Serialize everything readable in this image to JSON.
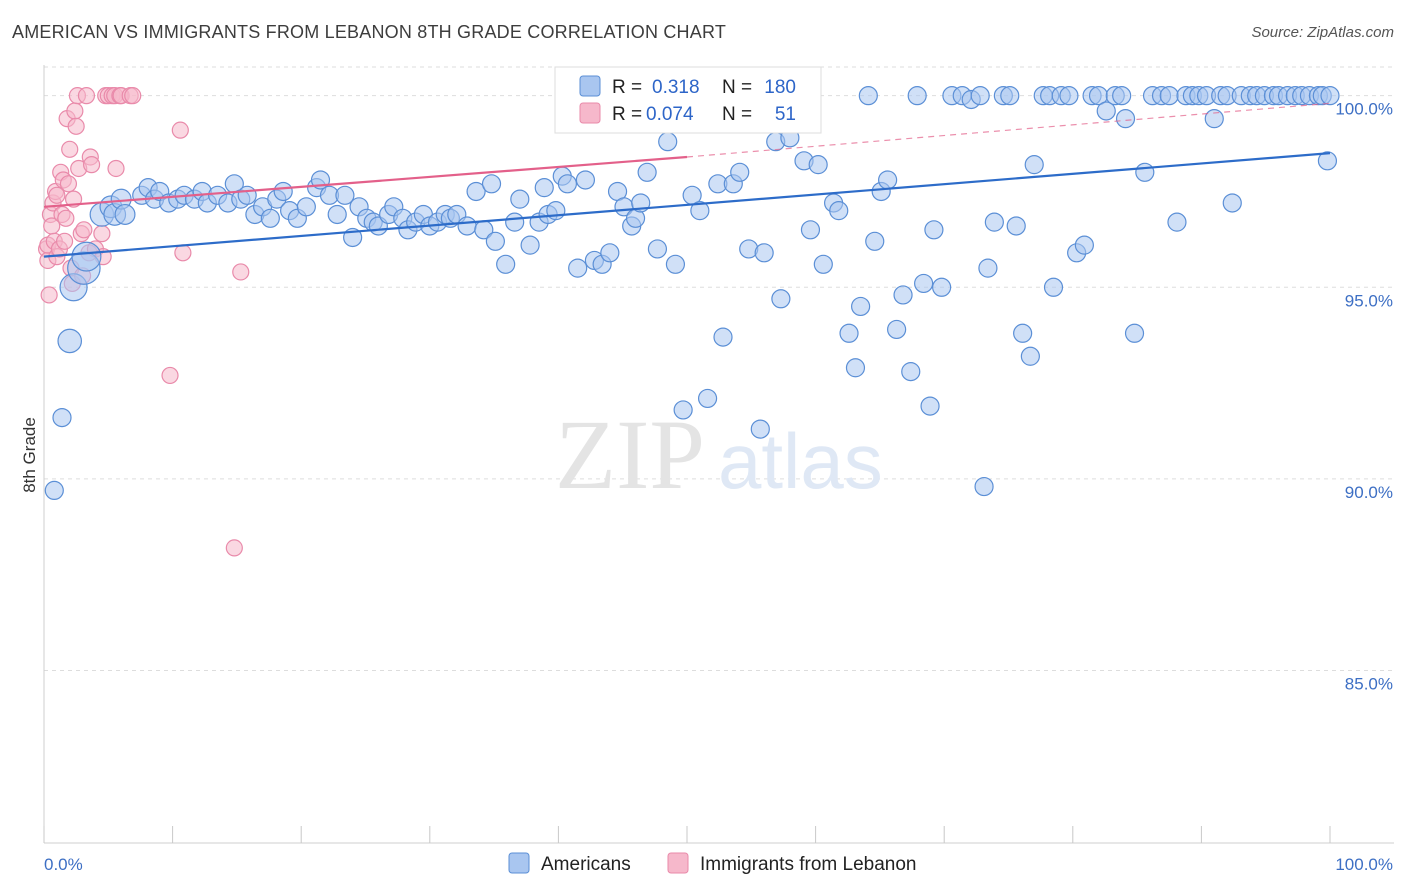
{
  "header": {
    "title": "AMERICAN VS IMMIGRANTS FROM LEBANON 8TH GRADE CORRELATION CHART",
    "source": "Source: ZipAtlas.com"
  },
  "watermark": {
    "zip": "ZIP",
    "atlas": "atlas"
  },
  "colors": {
    "blue_fill": "#a9c6f0",
    "blue_stroke": "#5b8fd6",
    "blue_line": "#2d6cc9",
    "pink_fill": "#f6b8cb",
    "pink_stroke": "#e98aaa",
    "pink_line": "#e3608a",
    "grid": "#dddddd",
    "axis_text": "#3d6fc4"
  },
  "legend_box": {
    "rows": [
      {
        "r_label": "R =",
        "r_value": "0.318",
        "n_label": "N =",
        "n_value": "180",
        "color": "blue"
      },
      {
        "r_label": "R =",
        "r_value": "0.074",
        "n_label": "N =",
        "n_value": "51",
        "color": "pink"
      }
    ]
  },
  "chart_data": {
    "type": "scatter",
    "title": "AMERICAN VS IMMIGRANTS FROM LEBANON 8TH GRADE CORRELATION CHART",
    "xlabel": "",
    "ylabel": "8th Grade",
    "xlim": [
      0,
      100
    ],
    "ylim": [
      80.5,
      100.8
    ],
    "x_tick_labels": [
      "0.0%",
      "100.0%"
    ],
    "y_ticks": [
      85,
      90,
      95,
      100
    ],
    "y_tick_labels": [
      "85.0%",
      "90.0%",
      "95.0%",
      "100.0%"
    ],
    "grid": "horizontal dashed",
    "legend_placement": "top-center and bottom",
    "series": [
      {
        "name": "Americans",
        "color": "blue",
        "trend": {
          "x": [
            0,
            100
          ],
          "y": [
            95.8,
            98.5
          ],
          "style": "solid"
        },
        "points": [
          [
            0.8,
            89.7,
            1
          ],
          [
            1.4,
            91.6,
            1
          ],
          [
            2.0,
            93.6,
            1.3
          ],
          [
            2.3,
            95.0,
            1.5
          ],
          [
            3.1,
            95.5,
            1.8
          ],
          [
            3.3,
            95.8,
            1.6
          ],
          [
            4.5,
            96.9,
            1.3
          ],
          [
            5.2,
            97.1,
            1.2
          ],
          [
            5.5,
            96.9,
            1.2
          ],
          [
            6.0,
            97.3,
            1.1
          ],
          [
            6.3,
            96.9,
            1.1
          ],
          [
            7.6,
            97.4,
            1
          ],
          [
            8.1,
            97.6,
            1
          ],
          [
            8.6,
            97.3,
            1
          ],
          [
            9.0,
            97.5,
            1
          ],
          [
            9.7,
            97.2,
            1
          ],
          [
            10.4,
            97.3,
            1
          ],
          [
            10.9,
            97.4,
            1
          ],
          [
            11.7,
            97.3,
            1
          ],
          [
            12.3,
            97.5,
            1
          ],
          [
            12.7,
            97.2,
            1
          ],
          [
            13.5,
            97.4,
            1
          ],
          [
            14.3,
            97.2,
            1
          ],
          [
            14.8,
            97.7,
            1
          ],
          [
            15.3,
            97.3,
            1
          ],
          [
            15.8,
            97.4,
            1
          ],
          [
            16.4,
            96.9,
            1
          ],
          [
            17.0,
            97.1,
            1
          ],
          [
            17.6,
            96.8,
            1
          ],
          [
            18.1,
            97.3,
            1
          ],
          [
            18.6,
            97.5,
            1
          ],
          [
            19.1,
            97.0,
            1
          ],
          [
            19.7,
            96.8,
            1
          ],
          [
            20.4,
            97.1,
            1
          ],
          [
            21.2,
            97.6,
            1
          ],
          [
            21.5,
            97.8,
            1
          ],
          [
            22.2,
            97.4,
            1
          ],
          [
            22.8,
            96.9,
            1
          ],
          [
            23.4,
            97.4,
            1
          ],
          [
            24.0,
            96.3,
            1
          ],
          [
            24.5,
            97.1,
            1
          ],
          [
            25.1,
            96.8,
            1
          ],
          [
            25.6,
            96.7,
            1
          ],
          [
            26.0,
            96.6,
            1
          ],
          [
            26.8,
            96.9,
            1
          ],
          [
            27.2,
            97.1,
            1
          ],
          [
            27.9,
            96.8,
            1
          ],
          [
            28.3,
            96.5,
            1
          ],
          [
            28.9,
            96.7,
            1
          ],
          [
            29.5,
            96.9,
            1
          ],
          [
            30.0,
            96.6,
            1
          ],
          [
            30.6,
            96.7,
            1
          ],
          [
            31.2,
            96.9,
            1
          ],
          [
            31.6,
            96.8,
            1
          ],
          [
            32.1,
            96.9,
            1
          ],
          [
            32.9,
            96.6,
            1
          ],
          [
            33.6,
            97.5,
            1
          ],
          [
            34.2,
            96.5,
            1
          ],
          [
            34.8,
            97.7,
            1
          ],
          [
            35.1,
            96.2,
            1
          ],
          [
            35.9,
            95.6,
            1
          ],
          [
            36.6,
            96.7,
            1
          ],
          [
            37.0,
            97.3,
            1
          ],
          [
            37.8,
            96.1,
            1
          ],
          [
            38.5,
            96.7,
            1
          ],
          [
            38.9,
            97.6,
            1
          ],
          [
            39.2,
            96.9,
            1
          ],
          [
            39.8,
            97.0,
            1
          ],
          [
            40.3,
            97.9,
            1
          ],
          [
            40.7,
            97.7,
            1
          ],
          [
            41.5,
            95.5,
            1
          ],
          [
            42.1,
            97.8,
            1
          ],
          [
            42.8,
            95.7,
            1
          ],
          [
            43.4,
            95.6,
            1
          ],
          [
            44.0,
            95.9,
            1
          ],
          [
            44.6,
            97.5,
            1
          ],
          [
            45.1,
            97.1,
            1
          ],
          [
            45.7,
            96.6,
            1
          ],
          [
            46.0,
            96.8,
            1
          ],
          [
            46.4,
            97.2,
            1
          ],
          [
            46.9,
            98.0,
            1
          ],
          [
            47.7,
            96.0,
            1
          ],
          [
            48.5,
            98.8,
            1
          ],
          [
            49.1,
            95.6,
            1
          ],
          [
            49.7,
            91.8,
            1
          ],
          [
            50.4,
            97.4,
            1
          ],
          [
            51.0,
            97.0,
            1
          ],
          [
            51.6,
            92.1,
            1
          ],
          [
            52.4,
            97.7,
            1
          ],
          [
            52.8,
            93.7,
            1
          ],
          [
            53.6,
            97.7,
            1
          ],
          [
            54.1,
            98.0,
            1
          ],
          [
            54.8,
            96.0,
            1
          ],
          [
            55.7,
            91.3,
            1
          ],
          [
            56.0,
            95.9,
            1
          ],
          [
            56.9,
            98.8,
            1
          ],
          [
            57.3,
            94.7,
            1
          ],
          [
            58.0,
            98.9,
            1
          ],
          [
            58.5,
            99.6,
            1
          ],
          [
            59.1,
            98.3,
            1
          ],
          [
            59.6,
            96.5,
            1
          ],
          [
            60.2,
            98.2,
            1
          ],
          [
            60.6,
            95.6,
            1
          ],
          [
            61.4,
            97.2,
            1
          ],
          [
            61.8,
            97.0,
            1
          ],
          [
            62.6,
            93.8,
            1
          ],
          [
            63.1,
            92.9,
            1
          ],
          [
            63.5,
            94.5,
            1
          ],
          [
            64.1,
            100.0,
            1
          ],
          [
            64.6,
            96.2,
            1
          ],
          [
            65.1,
            97.5,
            1
          ],
          [
            65.6,
            97.8,
            1
          ],
          [
            66.3,
            93.9,
            1
          ],
          [
            66.8,
            94.8,
            1
          ],
          [
            67.4,
            92.8,
            1
          ],
          [
            67.9,
            100.0,
            1
          ],
          [
            68.4,
            95.1,
            1
          ],
          [
            68.9,
            91.9,
            1
          ],
          [
            69.2,
            96.5,
            1
          ],
          [
            69.8,
            95.0,
            1
          ],
          [
            70.6,
            100.0,
            1
          ],
          [
            71.4,
            100.0,
            1
          ],
          [
            72.1,
            99.9,
            1
          ],
          [
            72.8,
            100.0,
            1
          ],
          [
            73.1,
            89.8,
            1
          ],
          [
            73.4,
            95.5,
            1
          ],
          [
            73.9,
            96.7,
            1
          ],
          [
            74.6,
            100.0,
            1
          ],
          [
            75.1,
            100.0,
            1
          ],
          [
            75.6,
            96.6,
            1
          ],
          [
            76.1,
            93.8,
            1
          ],
          [
            76.7,
            93.2,
            1
          ],
          [
            77.0,
            98.2,
            1
          ],
          [
            77.7,
            100.0,
            1
          ],
          [
            78.2,
            100.0,
            1
          ],
          [
            78.5,
            95.0,
            1
          ],
          [
            79.1,
            100.0,
            1
          ],
          [
            79.7,
            100.0,
            1
          ],
          [
            80.3,
            95.9,
            1
          ],
          [
            80.9,
            96.1,
            1
          ],
          [
            81.5,
            100.0,
            1
          ],
          [
            82.0,
            100.0,
            1
          ],
          [
            82.6,
            99.6,
            1
          ],
          [
            83.3,
            100.0,
            1
          ],
          [
            83.8,
            100.0,
            1
          ],
          [
            84.1,
            99.4,
            1
          ],
          [
            84.8,
            93.8,
            1
          ],
          [
            85.6,
            98.0,
            1
          ],
          [
            86.2,
            100.0,
            1
          ],
          [
            86.9,
            100.0,
            1
          ],
          [
            87.5,
            100.0,
            1
          ],
          [
            88.1,
            96.7,
            1
          ],
          [
            88.8,
            100.0,
            1
          ],
          [
            89.3,
            100.0,
            1
          ],
          [
            89.8,
            100.0,
            1
          ],
          [
            90.4,
            100.0,
            1
          ],
          [
            91.0,
            99.4,
            1
          ],
          [
            91.5,
            100.0,
            1
          ],
          [
            92.0,
            100.0,
            1
          ],
          [
            92.4,
            97.2,
            1
          ],
          [
            93.1,
            100.0,
            1
          ],
          [
            93.8,
            100.0,
            1
          ],
          [
            94.3,
            100.0,
            1
          ],
          [
            94.9,
            100.0,
            1
          ],
          [
            95.6,
            100.0,
            1
          ],
          [
            96.0,
            100.0,
            1
          ],
          [
            96.7,
            100.0,
            1
          ],
          [
            97.3,
            100.0,
            1
          ],
          [
            97.8,
            100.0,
            1
          ],
          [
            98.4,
            100.0,
            1
          ],
          [
            99.1,
            100.0,
            1
          ],
          [
            99.4,
            100.0,
            1
          ],
          [
            99.8,
            98.3,
            1
          ],
          [
            100.0,
            100.0,
            1
          ]
        ]
      },
      {
        "name": "Immigrants from Lebanon",
        "color": "pink",
        "trend": {
          "x": [
            0,
            50
          ],
          "y": [
            97.1,
            98.4
          ],
          "style": "solid",
          "extension": {
            "x": [
              50,
              100
            ],
            "y": [
              98.4,
              99.8
            ],
            "style": "dashed"
          }
        },
        "points": [
          [
            0.2,
            96.0,
            1
          ],
          [
            0.3,
            95.7,
            1
          ],
          [
            0.3,
            96.1,
            1
          ],
          [
            0.4,
            94.8,
            1
          ],
          [
            0.5,
            96.9,
            1
          ],
          [
            0.6,
            96.6,
            1
          ],
          [
            0.7,
            97.2,
            1
          ],
          [
            0.8,
            96.2,
            1
          ],
          [
            0.9,
            97.5,
            1
          ],
          [
            1.0,
            97.4,
            1
          ],
          [
            1.0,
            95.8,
            1
          ],
          [
            1.2,
            96.0,
            1
          ],
          [
            1.3,
            98.0,
            1
          ],
          [
            1.4,
            96.9,
            1
          ],
          [
            1.5,
            97.8,
            1
          ],
          [
            1.6,
            96.2,
            1
          ],
          [
            1.7,
            96.8,
            1
          ],
          [
            1.8,
            99.4,
            1
          ],
          [
            1.9,
            97.7,
            1
          ],
          [
            2.0,
            98.6,
            1
          ],
          [
            2.1,
            95.5,
            1
          ],
          [
            2.2,
            95.1,
            1
          ],
          [
            2.3,
            97.3,
            1
          ],
          [
            2.4,
            99.6,
            1
          ],
          [
            2.5,
            99.2,
            1
          ],
          [
            2.6,
            100.0,
            1
          ],
          [
            2.7,
            98.1,
            1
          ],
          [
            2.9,
            96.4,
            1
          ],
          [
            3.0,
            95.3,
            1
          ],
          [
            3.1,
            96.5,
            1
          ],
          [
            3.3,
            100.0,
            1
          ],
          [
            3.5,
            95.9,
            1
          ],
          [
            3.6,
            98.4,
            1
          ],
          [
            3.7,
            98.2,
            1
          ],
          [
            4.0,
            96.0,
            1
          ],
          [
            4.5,
            96.4,
            1
          ],
          [
            4.6,
            95.8,
            1
          ],
          [
            4.8,
            100.0,
            1
          ],
          [
            5.0,
            100.0,
            1
          ],
          [
            5.3,
            100.0,
            1
          ],
          [
            5.5,
            100.0,
            1
          ],
          [
            5.6,
            98.1,
            1
          ],
          [
            5.9,
            100.0,
            1
          ],
          [
            6.0,
            100.0,
            1
          ],
          [
            6.7,
            100.0,
            1
          ],
          [
            6.9,
            100.0,
            1
          ],
          [
            9.8,
            92.7,
            1
          ],
          [
            10.6,
            99.1,
            1
          ],
          [
            10.8,
            95.9,
            1
          ],
          [
            14.8,
            88.2,
            1
          ],
          [
            15.3,
            95.4,
            1
          ]
        ]
      }
    ]
  },
  "bottom_legend": {
    "items": [
      "Americans",
      "Immigrants from Lebanon"
    ]
  }
}
